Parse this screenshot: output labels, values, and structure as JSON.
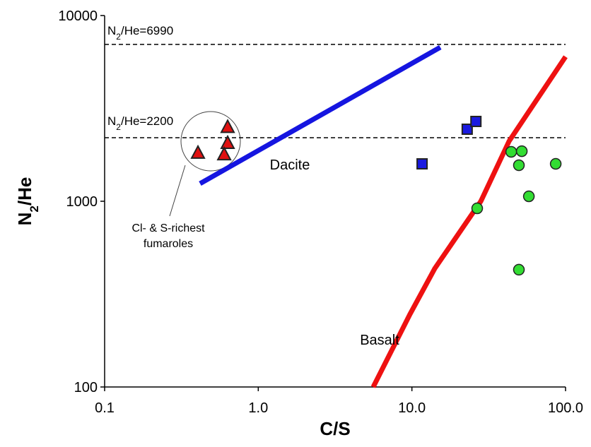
{
  "chart_data": {
    "type": "scatter",
    "xlabel": "C/S",
    "ylabel_parts": [
      "N",
      "2",
      "/He"
    ],
    "xscale": "log",
    "yscale": "log",
    "xlim": [
      0.1,
      100
    ],
    "ylim": [
      100,
      10000
    ],
    "xticks": [
      0.1,
      {
        "value": 1,
        "label": "1.0"
      },
      {
        "value": 10,
        "label": "10.0"
      },
      {
        "value": 100,
        "label": "100.0"
      }
    ],
    "yticks": [
      100,
      1000,
      10000
    ],
    "ref_lines": [
      {
        "value": 6990,
        "label_parts": [
          "N",
          "2",
          "/He=6990"
        ]
      },
      {
        "value": 2200,
        "label_parts": [
          "N",
          "2",
          "/He=2200"
        ]
      }
    ],
    "annotations": [
      "Cl- & S-richest",
      "fumaroles"
    ],
    "series": [
      {
        "name": "Dacite",
        "marker": "line",
        "color": "#1515e0",
        "x": [
          0.418,
          15.3
        ],
        "values": [
          1245,
          6745
        ]
      },
      {
        "name": "Basalt",
        "marker": "line",
        "color": "#ee1111",
        "x": [
          5.6,
          9.7,
          14.1,
          28.1,
          42.9,
          100
        ],
        "values": [
          100,
          246,
          435,
          1000,
          2106,
          6000
        ]
      },
      {
        "marker": "triangle",
        "color": "#e01010",
        "x": [
          0.405,
          0.632,
          0.632,
          0.6
        ],
        "values": [
          1815,
          2500,
          2050,
          1780
        ]
      },
      {
        "marker": "square",
        "color": "#1a1ae0",
        "x": [
          11.65,
          22.9,
          26.1
        ],
        "values": [
          1590,
          2443,
          2690
        ]
      },
      {
        "marker": "circle",
        "color": "#33dd33",
        "x": [
          44.3,
          51.9,
          49.7,
          86.3,
          57.7,
          26.6,
          49.7
        ],
        "values": [
          1846,
          1860,
          1563,
          1590,
          1063,
          916,
          428
        ]
      }
    ]
  }
}
